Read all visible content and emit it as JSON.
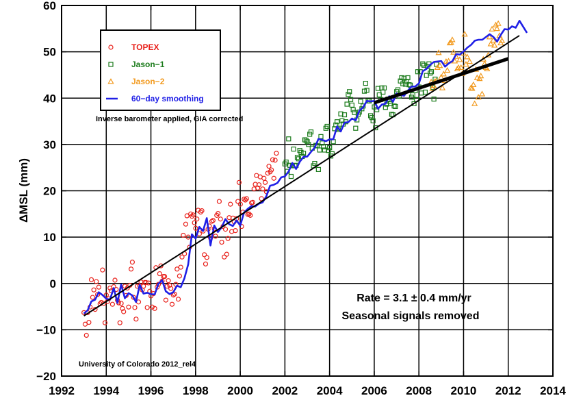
{
  "chart_data": {
    "type": "scatter",
    "title": "",
    "xlabel": "",
    "ylabel": "ΔMSL (mm)",
    "xlim": [
      1992,
      2014
    ],
    "ylim": [
      -20,
      60
    ],
    "xticks": [
      1992,
      1994,
      1996,
      1998,
      2000,
      2002,
      2004,
      2006,
      2008,
      2010,
      2012,
      2014
    ],
    "yticks": [
      -20,
      -10,
      0,
      10,
      20,
      30,
      40,
      50,
      60
    ],
    "xtick_labels": [
      "1992",
      "1994",
      "1996",
      "1998",
      "2000",
      "2002",
      "2004",
      "2006",
      "2008",
      "2010",
      "2012",
      "2014"
    ],
    "ytick_labels": [
      "−20",
      "−10",
      "0",
      "10",
      "20",
      "30",
      "40",
      "50",
      "60"
    ],
    "grid": true,
    "colors": {
      "topex": "#e8201a",
      "jason1": "#1a7a1a",
      "jason2": "#f29a1f",
      "smoothing": "#1f1fe6",
      "trend": "#000000"
    },
    "series": [
      {
        "name": "TOPEX",
        "marker": "circle",
        "start": 1993.0,
        "step": 0.0556,
        "values": [
          -6.3,
          -8.8,
          -11.2,
          -6.3,
          -8.4,
          -5.1,
          0.8,
          -3,
          -1.4,
          -5.6,
          0.4,
          -2.4,
          -0.8,
          -4.4,
          -4.1,
          2.9,
          -4.3,
          -8.5,
          -2.5,
          -3.9,
          -3.3,
          -1,
          -1.6,
          -4.5,
          -0.7,
          0.7,
          -1.3,
          -3.6,
          -4.2,
          -8.5,
          -4.3,
          -5.4,
          -6.1,
          -0.6,
          -2.6,
          -1,
          -5.1,
          -0.4,
          3.1,
          4.6,
          -3,
          -5.2,
          -7.7,
          -0.6,
          -4,
          -0.5,
          0.3,
          -1.4,
          -0.6,
          0.2,
          0.2,
          -5.2,
          0.1,
          -1.7,
          -2.7,
          -5.1,
          -2.2,
          -5.4,
          3.4,
          -0.8,
          -0.2,
          2.1,
          3.8,
          0.5,
          1.5,
          1.5,
          -3.6,
          -0.6,
          0.6,
          -0.4,
          -1.1,
          -4.5,
          -2.5,
          -2.3,
          -0.2,
          3.1,
          -3.4,
          1.6,
          3.5,
          5.7,
          10.4,
          6.4,
          12.8,
          14.6,
          10,
          7.8,
          15,
          14.5,
          14.8,
          13.1,
          11.9,
          13.9,
          15.8,
          10.7,
          15.4,
          15.7,
          11.3,
          6.2,
          4.2,
          5.6,
          11.7,
          12.4,
          9.8,
          13.4,
          13.6,
          11.8,
          10.2,
          14.7,
          15.1,
          17.7,
          13.9,
          8.9,
          12.3,
          5.7,
          11.7,
          6.3,
          9.7,
          14.2,
          17.1,
          11.2,
          14.1,
          13.3,
          11.4,
          14,
          17.7,
          21.8,
          17.1,
          12.3,
          15.4,
          18.2,
          18,
          18.3,
          14.9,
          15,
          14.7,
          17.4,
          17.5,
          20.4,
          21.4,
          23.3,
          20.6,
          21.3,
          23,
          18.3,
          20.4,
          22.7,
          21.8,
          19.8,
          23.8,
          25.3,
          24.1,
          24.5,
          26.7,
          22.7,
          26.6,
          28.1
        ]
      },
      {
        "name": "Jason-1",
        "marker": "square",
        "start": 2002.0,
        "step": 0.0556,
        "values": [
          25.8,
          26.2,
          24.2,
          31.2,
          25.5,
          23.1,
          25.4,
          29,
          25.4,
          25.5,
          27.2,
          26.9,
          28.7,
          28.3,
          27.4,
          28.1,
          31,
          30.9,
          30.6,
          30,
          32.2,
          32.7,
          29.2,
          25.4,
          25.9,
          29.8,
          29.7,
          24.6,
          28.8,
          31.7,
          30.3,
          29.5,
          28.8,
          33.5,
          33.9,
          28.7,
          29.3,
          27.5,
          28,
          30.6,
          33.4,
          34.2,
          34.9,
          33.2,
          33.5,
          36.6,
          35.1,
          34.4,
          36.4,
          34.9,
          38.7,
          40.8,
          41.4,
          39.7,
          38.5,
          37.5,
          36.9,
          33.5,
          35.3,
          36.5,
          37,
          39.3,
          37.7,
          38.3,
          41.5,
          43.2,
          41.7,
          39.4,
          39.4,
          36.2,
          35.8,
          35.1,
          38.1,
          33.6,
          37.5,
          42.1,
          40.7,
          39.7,
          42.2,
          41.3,
          42.2,
          38,
          38.7,
          39.8,
          39.3,
          38.8,
          36.5,
          36.4,
          38.3,
          38.2,
          41.4,
          41.8,
          40.4,
          43.7,
          44.4,
          43.1,
          44.3,
          43,
          43.6,
          44.4,
          42.9,
          42.8,
          40.2,
          40.7,
          38.8,
          41.6,
          39.7,
          45.7,
          42.4,
          45.7,
          41.1,
          47.4,
          47.1,
          41.3,
          44.9,
          46.8,
          47.4,
          45.4,
          45.7,
          42.3,
          39.8,
          44.1,
          47.3
        ]
      },
      {
        "name": "Jason-2",
        "marker": "triangle",
        "start": 2008.55,
        "step": 0.0556,
        "values": [
          43.5,
          42.1,
          42.7,
          43.6,
          43.7,
          46.6,
          49.8,
          47,
          44.5,
          42.2,
          45.2,
          43.8,
          47.9,
          46,
          48,
          51.9,
          52,
          52.6,
          49.9,
          48,
          49,
          46.3,
          46.6,
          48.3,
          46.6,
          45.3,
          49.7,
          53.8,
          47.3,
          48.9,
          46.1,
          47.9,
          42.2,
          42.1,
          42.9,
          38.8,
          46.2,
          44.4,
          40.2,
          44.2,
          44.8,
          40.9,
          48.4,
          47.4,
          46.6,
          46.3,
          49.3,
          53.2,
          51.7,
          54.9,
          52.5,
          51.4,
          55.8,
          55,
          56.1,
          53.5,
          51.9,
          52.4
        ]
      },
      {
        "name": "60-day smoothing",
        "marker": "line",
        "start": 1993.0,
        "step": 0.1667,
        "values": [
          -6.5,
          -5.8,
          -3.9,
          -3.5,
          -1.9,
          -2.5,
          -3.3,
          -3.5,
          -1,
          -4.2,
          -0.2,
          -3.2,
          -2.1,
          -2.6,
          -4,
          -0.3,
          -2.2,
          -2,
          -2.3,
          -2.4,
          -0.1,
          0.7,
          -1.7,
          -2.3,
          -1.9,
          -0.5,
          -0.8,
          1.1,
          4.1,
          10.6,
          9.7,
          12.2,
          11.3,
          14.1,
          8.2,
          12.5,
          11.1,
          12.1,
          13.9,
          12.8,
          12.4,
          13.6,
          12.5,
          15.3,
          16.1,
          16.7,
          16.6,
          17.2,
          17.5,
          18.8,
          21.1,
          21.3,
          21.7,
          22.9,
          23.1,
          24.2,
          26,
          24.7,
          26.3,
          27.3,
          27.4,
          28.4,
          29.3,
          31.2,
          31,
          30.7,
          31.1,
          31.1,
          33.9,
          32.8,
          34.7,
          34.8,
          35.6,
          35.2,
          37.3,
          38,
          39.4,
          39.3,
          39.4,
          37.7,
          38.6,
          38.8,
          40.4,
          39.2,
          41,
          40.7,
          40.5,
          41.6,
          42.5,
          42.5,
          43.2,
          45.8,
          46.3,
          47.2,
          47.8,
          47.9,
          48,
          46.8,
          47.5,
          48,
          49.5,
          49.4,
          50.1,
          50.9,
          51.5,
          52.4,
          52.6,
          52.6,
          53.2,
          53.8,
          53.2,
          52.2,
          53.7,
          54.9,
          54.8,
          55.5,
          55.2,
          56.7,
          55.4,
          54.1
        ]
      }
    ],
    "trend_lines": [
      {
        "name": "trend",
        "x": [
          1993.0,
          2012.5
        ],
        "y": [
          -7,
          53.5
        ],
        "width": "thin"
      },
      {
        "name": "jason2-trend",
        "x": [
          2006.0,
          2012.0
        ],
        "y": [
          39,
          48.5
        ],
        "width": "thick"
      }
    ],
    "legend": {
      "placement": "top-left",
      "entries": [
        {
          "label": "TOPEX",
          "marker": "circle"
        },
        {
          "label": "Jason−1",
          "marker": "square"
        },
        {
          "label": "Jason−2",
          "marker": "triangle"
        },
        {
          "label": "60−day smoothing",
          "marker": "line"
        }
      ]
    },
    "annotations": {
      "correction_note": "Inverse barometer applied, GIA corrected",
      "rate_text": "Rate = 3.1 ± 0.4 mm/yr",
      "seasonal_text": "Seasonal signals removed",
      "source_text": "University of Colorado 2012_rel4"
    }
  }
}
